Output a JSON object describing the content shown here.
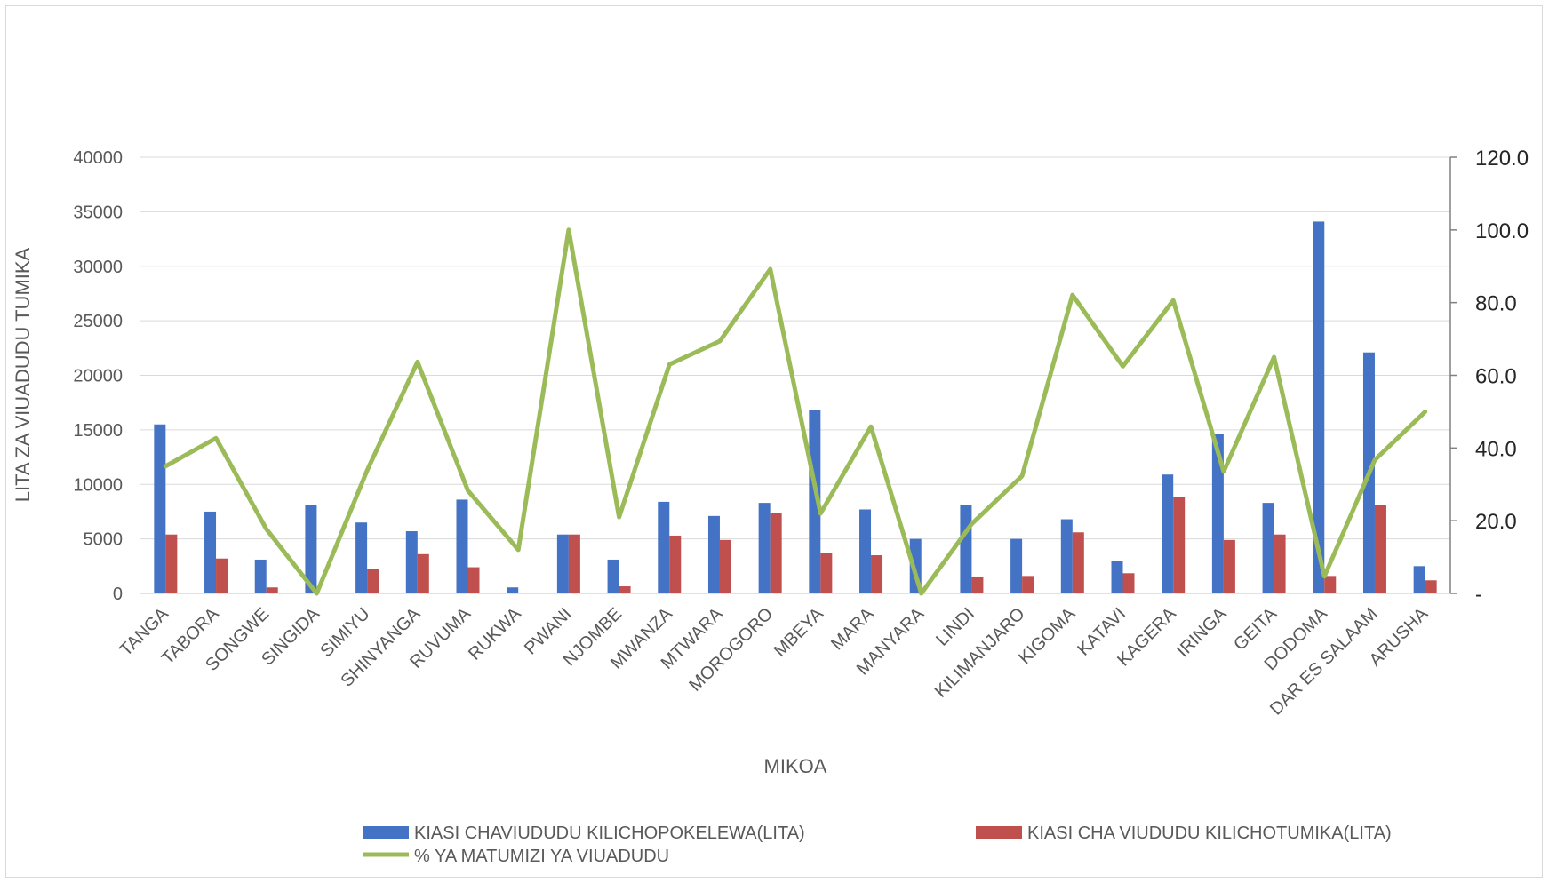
{
  "chart_data": {
    "type": "bar",
    "title": "",
    "xlabel": "MIKOA",
    "ylabel": "LITA ZA VIUADUDU TUMIKA",
    "ylim": [
      0,
      40000
    ],
    "y_ticks": [
      "0",
      "5000",
      "10000",
      "15000",
      "20000",
      "25000",
      "30000",
      "35000",
      "40000"
    ],
    "y2lim": [
      0,
      120
    ],
    "y2_ticks": [
      "-",
      "20.0",
      "40.0",
      "60.0",
      "80.0",
      "100.0",
      "120.0"
    ],
    "grid": true,
    "legend_position": "bottom",
    "categories": [
      "TANGA",
      "TABORA",
      "SONGWE",
      "SINGIDA",
      "SIMIYU",
      "SHINYANGA",
      "RUVUMA",
      "RUKWA",
      "PWANI",
      "NJOMBE",
      "MWANZA",
      "MTWARA",
      "MOROGORO",
      "MBEYA",
      "MARA",
      "MANYARA",
      "LINDI",
      "KILIMANJARO",
      "KIGOMA",
      "KATAVI",
      "KAGERA",
      "IRINGA",
      "GEITA",
      "DODOMA",
      "DAR ES SALAAM",
      "ARUSHA"
    ],
    "series": [
      {
        "name": "KIASI CHAVIUDUDU KILICHOPOKELEWA(LITA)",
        "type": "bar",
        "axis": "left",
        "color": "#4472c4",
        "values": [
          15500,
          7500,
          3100,
          8100,
          6500,
          5700,
          8600,
          550,
          5400,
          3100,
          8400,
          7100,
          8300,
          16800,
          7700,
          5000,
          8100,
          5000,
          6800,
          3000,
          10900,
          14600,
          8300,
          34100,
          22100,
          2500
        ]
      },
      {
        "name": "KIASI CHA VIUDUDU KILICHOTUMIKA(LITA)",
        "type": "bar",
        "axis": "left",
        "color": "#c0504d",
        "values": [
          5400,
          3200,
          550,
          0,
          2200,
          3600,
          2400,
          0,
          5400,
          650,
          5300,
          4900,
          7400,
          3700,
          3500,
          0,
          1550,
          1600,
          5600,
          1850,
          8800,
          4900,
          5400,
          1600,
          8100,
          1200
        ]
      },
      {
        "name": "% YA MATUMIZI YA VIUADUDU",
        "type": "line",
        "axis": "right",
        "color": "#9bbb59",
        "values": [
          35,
          42.7,
          17.7,
          0,
          33.8,
          63.7,
          28.3,
          12,
          100,
          21,
          63,
          69.4,
          89.2,
          22,
          45.9,
          0,
          19.1,
          32.3,
          82.1,
          62.5,
          80.6,
          33.5,
          65,
          4.7,
          36.7,
          50
        ]
      }
    ]
  }
}
